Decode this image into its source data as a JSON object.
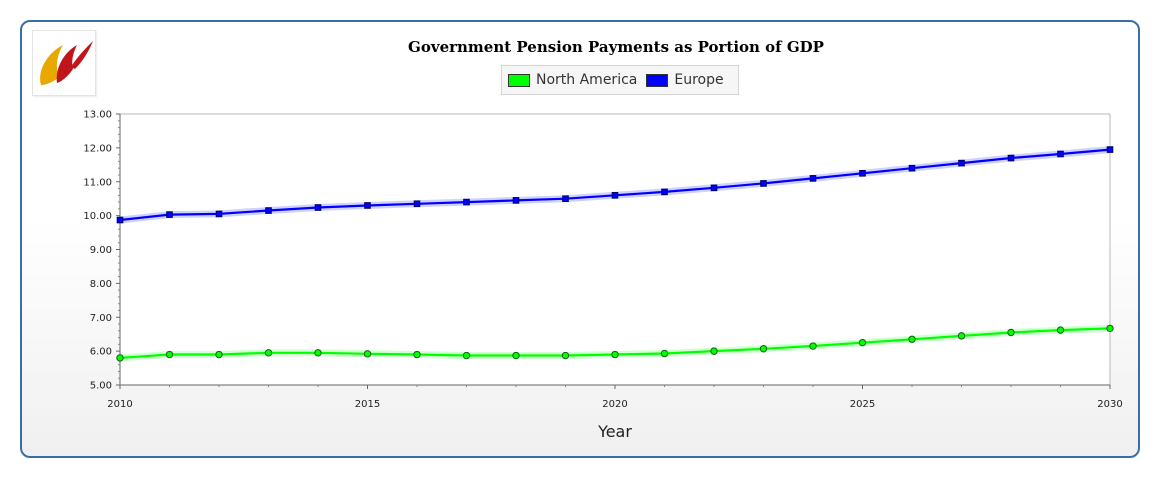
{
  "chart_data": {
    "type": "line",
    "title": "Government Pension Payments as Portion of GDP",
    "xlabel": "Year",
    "ylabel": "",
    "xlim": [
      2010,
      2030
    ],
    "ylim": [
      5,
      13
    ],
    "x_ticks": [
      "2010",
      "2015",
      "2020",
      "2025",
      "2030"
    ],
    "y_ticks": [
      "5.00",
      "6.00",
      "7.00",
      "8.00",
      "9.00",
      "10.00",
      "11.00",
      "12.00",
      "13.00"
    ],
    "grid": false,
    "legend_position": "top-center",
    "x": [
      2010,
      2011,
      2012,
      2013,
      2014,
      2015,
      2016,
      2017,
      2018,
      2019,
      2020,
      2021,
      2022,
      2023,
      2024,
      2025,
      2026,
      2027,
      2028,
      2029,
      2030
    ],
    "series": [
      {
        "name": "North America",
        "color": "#00ff00",
        "marker": "circle",
        "values": [
          5.8,
          5.9,
          5.9,
          5.95,
          5.95,
          5.92,
          5.9,
          5.87,
          5.87,
          5.87,
          5.9,
          5.93,
          6.0,
          6.07,
          6.15,
          6.25,
          6.35,
          6.45,
          6.55,
          6.62,
          6.67
        ]
      },
      {
        "name": "Europe",
        "color": "#0000ff",
        "marker": "square",
        "values": [
          9.87,
          10.03,
          10.05,
          10.15,
          10.24,
          10.3,
          10.35,
          10.4,
          10.45,
          10.5,
          10.6,
          10.7,
          10.82,
          10.95,
          11.1,
          11.25,
          11.4,
          11.55,
          11.7,
          11.82,
          11.95
        ]
      }
    ]
  }
}
